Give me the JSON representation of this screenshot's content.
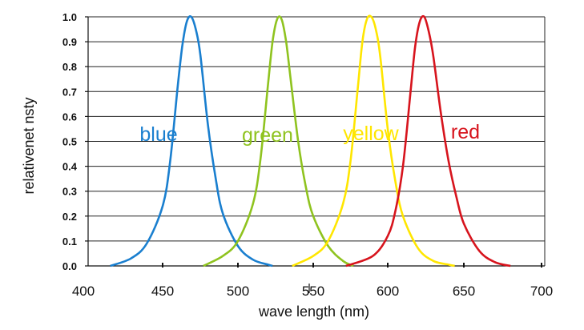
{
  "chart_data": {
    "type": "line",
    "title": "",
    "xlabel": "wave length (nm)",
    "ylabel": "relativenet  nsty",
    "xlim": [
      400,
      700
    ],
    "ylim": [
      0,
      1.0
    ],
    "x_ticks": [
      "400",
      "450",
      "500",
      "550",
      "600",
      "650",
      "700"
    ],
    "y_ticks": [
      "0.0",
      "0.1",
      "0.2",
      "0.3",
      "0.4",
      "0.5",
      "0.6",
      "0.7",
      "0.8",
      "0.9",
      "1.0"
    ],
    "grid": true,
    "legend": "inline labels",
    "series": [
      {
        "name": "blue",
        "color": "#1a7fcf",
        "x": [
          417,
          430,
          440,
          450,
          455,
          460,
          463,
          466,
          469,
          472,
          475,
          480,
          485,
          490,
          500,
          510,
          520,
          523
        ],
        "y": [
          0.0,
          0.03,
          0.09,
          0.24,
          0.42,
          0.72,
          0.88,
          0.98,
          1.0,
          0.95,
          0.85,
          0.57,
          0.36,
          0.21,
          0.08,
          0.025,
          0.005,
          0.0
        ]
      },
      {
        "name": "green",
        "color": "#8fc31f",
        "x": [
          477,
          490,
          500,
          510,
          515,
          520,
          523,
          526,
          529,
          532,
          535,
          540,
          545,
          550,
          560,
          570,
          577
        ],
        "y": [
          0.0,
          0.04,
          0.1,
          0.25,
          0.43,
          0.73,
          0.9,
          0.99,
          0.99,
          0.9,
          0.75,
          0.5,
          0.32,
          0.2,
          0.08,
          0.02,
          0.0
        ]
      },
      {
        "name": "yellow",
        "color": "#ffe600",
        "x": [
          536,
          550,
          560,
          570,
          575,
          580,
          583,
          586,
          589,
          592,
          595,
          600,
          605,
          610,
          620,
          630,
          640,
          644
        ],
        "y": [
          0.0,
          0.04,
          0.1,
          0.25,
          0.42,
          0.72,
          0.9,
          0.99,
          1.0,
          0.95,
          0.84,
          0.55,
          0.34,
          0.2,
          0.07,
          0.02,
          0.005,
          0.0
        ]
      },
      {
        "name": "red",
        "color": "#d7141d",
        "x": [
          572,
          590,
          600,
          605,
          610,
          615,
          618,
          621,
          624,
          627,
          630,
          635,
          640,
          645,
          650,
          660,
          670,
          680
        ],
        "y": [
          0.0,
          0.04,
          0.12,
          0.22,
          0.4,
          0.7,
          0.88,
          0.98,
          1.0,
          0.94,
          0.84,
          0.61,
          0.42,
          0.28,
          0.17,
          0.06,
          0.015,
          0.0
        ]
      }
    ]
  }
}
